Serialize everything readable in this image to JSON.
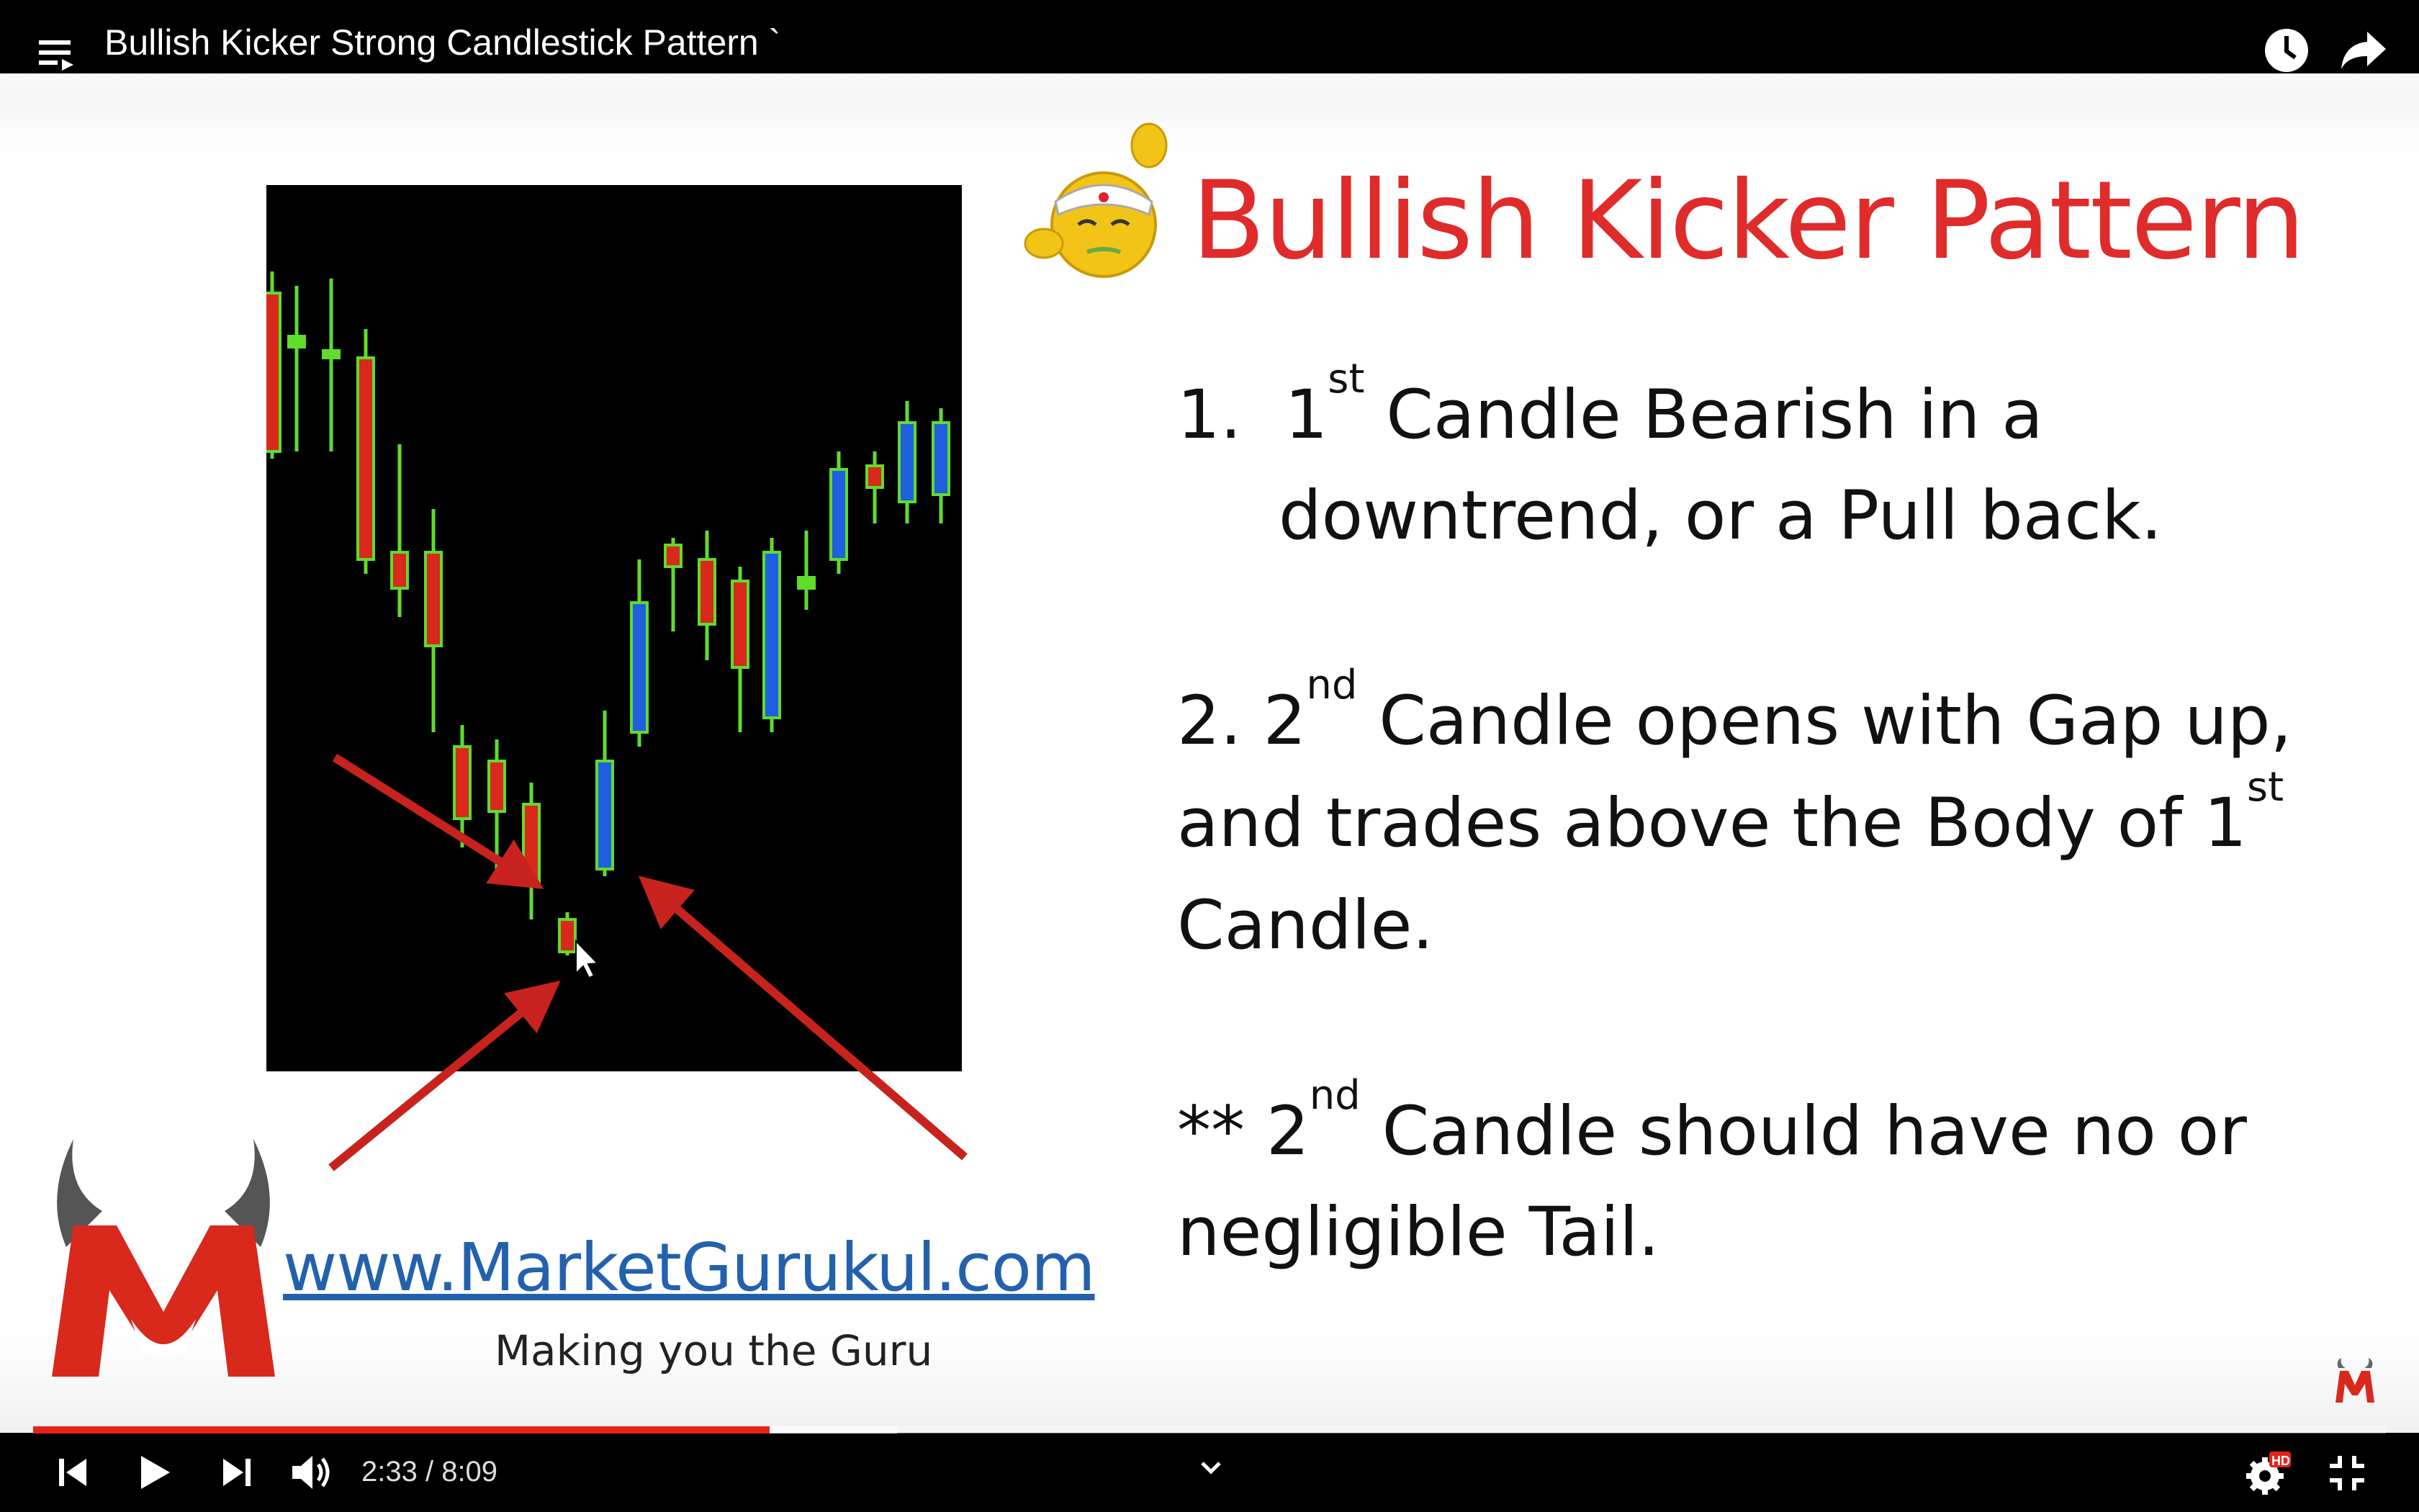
{
  "window": {
    "title": "Bullish Kicker Strong Candlestick Pattern `"
  },
  "icons": {
    "playlist": "playlist-icon",
    "watch_later": "clock-icon",
    "share": "share-arrow-icon",
    "prev": "skip-previous-icon",
    "play": "play-icon",
    "next": "skip-next-icon",
    "volume": "volume-icon",
    "chevron": "chevron-down-icon",
    "settings": "gear-icon",
    "exit_fullscreen": "exit-fullscreen-icon",
    "watermark": "channel-logo-icon",
    "mascot": "mascot-smiley-icon"
  },
  "slide": {
    "title": "Bullish Kicker Pattern",
    "point1": {
      "num": "1.",
      "n": "1",
      "sup": "st",
      "text_a": " Candle Bearish in a",
      "text_b": "downtrend, or a Pull back."
    },
    "point2": {
      "lead": "2. 2",
      "sup": "nd",
      "text_a": " Candle opens with Gap up,",
      "text_b": "and trades above the Body of 1",
      "sup_b": "st",
      "text_c": "Candle."
    },
    "point3": {
      "lead": "** 2",
      "sup": "nd",
      "text_a": " Candle should have no or",
      "text_b": "negligible Tail."
    },
    "logo": {
      "url": "www.MarketGurukul.com",
      "tagline": "Making you the Guru"
    }
  },
  "player": {
    "time": "2:33 / 8:09",
    "progress": 0.313,
    "hd_badge": "HD"
  },
  "colors": {
    "title_red": "#e02b2b",
    "url_blue": "#2461ad",
    "progress_red": "#e62117",
    "candle_green": "#5fdc2c",
    "candle_red": "#d9281c",
    "candle_blue": "#1f5fe0",
    "arrow_red": "#c8221e"
  }
}
